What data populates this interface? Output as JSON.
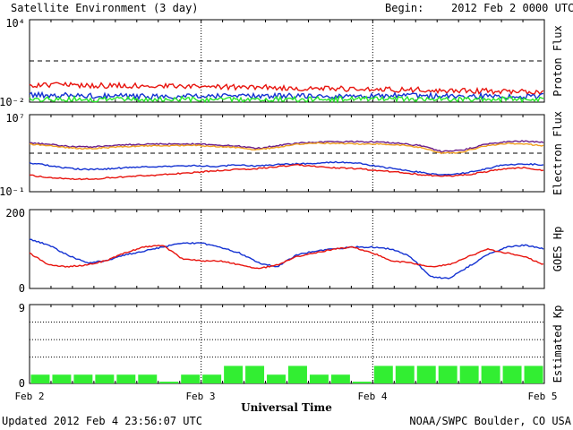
{
  "header": {
    "title": "Satellite Environment (3 day)",
    "begin_label": "Begin:",
    "begin_value": "2012 Feb 2 0000 UTC"
  },
  "footer": {
    "updated": "Updated 2012 Feb  4 23:56:07 UTC",
    "credit": "NOAA/SWPC Boulder, CO USA"
  },
  "colors": {
    "red": "#e8140e",
    "blue": "#1432d2",
    "green": "#28e628",
    "purple": "#6a1d8a",
    "orange": "#f0a020",
    "bar": "#32ee32"
  },
  "chart_data": [
    {
      "type": "line",
      "ylabel": "Proton Flux",
      "yscale": "log",
      "ytick_labels": [
        "10⁴",
        "10⁻²"
      ],
      "ylim": [
        0.01,
        10000
      ],
      "threshold": 10,
      "series": [
        {
          "color": "red",
          "values": [
            0.18,
            0.17,
            0.17,
            0.16,
            0.16,
            0.15,
            0.15,
            0.14,
            0.14,
            0.13,
            0.12,
            0.12,
            0.11,
            0.1,
            0.1,
            0.09,
            0.09,
            0.08,
            0.08,
            0.07,
            0.07,
            0.065,
            0.06,
            0.06,
            0.055
          ]
        },
        {
          "color": "blue",
          "values": [
            0.035,
            0.032,
            0.03,
            0.028,
            0.027,
            0.027,
            0.026,
            0.026,
            0.027,
            0.028,
            0.028,
            0.028,
            0.03,
            0.028,
            0.026,
            0.025,
            0.03,
            0.032,
            0.03,
            0.028,
            0.028,
            0.027,
            0.026,
            0.026,
            0.028
          ]
        },
        {
          "color": "green",
          "values": [
            0.018,
            0.017,
            0.017,
            0.016,
            0.016,
            0.016,
            0.017,
            0.017,
            0.016,
            0.016,
            0.016,
            0.017,
            0.017,
            0.016,
            0.016,
            0.016,
            0.017,
            0.017,
            0.016,
            0.016,
            0.016,
            0.016,
            0.016,
            0.016,
            0.016
          ]
        }
      ]
    },
    {
      "type": "line",
      "ylabel": "Electron Flux",
      "yscale": "log",
      "ytick_labels": [
        "10⁷",
        "10⁻¹"
      ],
      "ylim": [
        0.1,
        10000000
      ],
      "threshold": 1000,
      "series": [
        {
          "color": "purple",
          "values": [
            12000,
            8000,
            5000,
            4500,
            6000,
            8000,
            9000,
            8500,
            9000,
            7000,
            6000,
            3000,
            6000,
            11000,
            14000,
            15000,
            16000,
            15000,
            10000,
            6000,
            1500,
            2000,
            7000,
            15000,
            18000,
            13000
          ]
        },
        {
          "color": "orange",
          "values": [
            9000,
            6000,
            3500,
            3000,
            4000,
            5000,
            6000,
            6000,
            6500,
            5000,
            4000,
            2200,
            4000,
            8000,
            11000,
            10000,
            9500,
            9000,
            7000,
            4000,
            1000,
            1200,
            5000,
            10000,
            9000,
            6000
          ]
        },
        {
          "color": "blue",
          "values": [
            100,
            50,
            25,
            20,
            25,
            35,
            40,
            45,
            50,
            40,
            60,
            45,
            65,
            80,
            90,
            120,
            90,
            40,
            20,
            10,
            5,
            8,
            20,
            60,
            80,
            60
          ]
        },
        {
          "color": "red",
          "values": [
            5,
            3,
            2,
            2,
            3,
            4,
            5,
            7,
            10,
            15,
            20,
            25,
            40,
            60,
            40,
            30,
            25,
            15,
            10,
            6,
            4,
            5,
            10,
            25,
            30,
            15
          ]
        }
      ]
    },
    {
      "type": "line",
      "ylabel": "GOES Hp",
      "ytick_labels": [
        "200",
        "0"
      ],
      "ylim": [
        0,
        200
      ],
      "series": [
        {
          "color": "blue",
          "values": [
            125,
            110,
            85,
            65,
            70,
            85,
            95,
            105,
            115,
            115,
            105,
            90,
            65,
            55,
            85,
            95,
            100,
            105,
            105,
            100,
            80,
            30,
            25,
            55,
            85,
            105,
            110,
            100
          ]
        },
        {
          "color": "red",
          "values": [
            90,
            60,
            55,
            60,
            70,
            90,
            105,
            110,
            75,
            70,
            70,
            60,
            50,
            60,
            80,
            90,
            100,
            105,
            90,
            70,
            65,
            55,
            60,
            80,
            100,
            90,
            80,
            60
          ]
        }
      ]
    },
    {
      "type": "bar",
      "ylabel": "Estimated Kp",
      "ytick_labels": [
        "9",
        "0"
      ],
      "ylim": [
        0,
        9
      ],
      "values": [
        1,
        1,
        1,
        1,
        1,
        1,
        0.2,
        1,
        1,
        2,
        2,
        1,
        2,
        1,
        1,
        0.2,
        2,
        2,
        2,
        2,
        2,
        2,
        2,
        2
      ]
    }
  ],
  "xaxis": {
    "title": "Universal Time",
    "tick_labels": [
      "Feb 2",
      "Feb 3",
      "Feb 4",
      "Feb 5"
    ]
  }
}
